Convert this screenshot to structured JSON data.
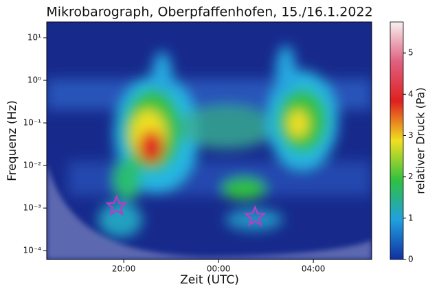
{
  "chart_data": {
    "type": "scatter",
    "title": "Mikrobarograph, Oberpfaffenhofen, 15./16.1.2022",
    "xlabel": "Zeit (UTC)",
    "ylabel": "Frequenz (Hz)",
    "ylog": true,
    "xlim": [
      16.75,
      30.46
    ],
    "ylim": [
      6.2e-05,
      23.5
    ],
    "xticks": [
      {
        "value": 20,
        "label": "20:00"
      },
      {
        "value": 24,
        "label": "00:00"
      },
      {
        "value": 28,
        "label": "04:00"
      }
    ],
    "yticks": [
      {
        "value": 0.0001,
        "label": "10⁻⁴"
      },
      {
        "value": 0.001,
        "label": "10⁻³"
      },
      {
        "value": 0.01,
        "label": "10⁻²"
      },
      {
        "value": 0.1,
        "label": "10⁻¹"
      },
      {
        "value": 1,
        "label": "10⁰"
      },
      {
        "value": 10,
        "label": "10¹"
      }
    ],
    "series": [
      {
        "color": "#b040c8",
        "x": [
          19.7,
          25.54
        ],
        "values": [
          0.0011,
          0.00062
        ]
      }
    ],
    "colorbar": {
      "label": "relativer Druck (Pa)",
      "lim": [
        0,
        5.75
      ],
      "ticks": [
        0,
        1,
        2,
        3,
        4,
        5
      ],
      "colors": [
        "#1030a0",
        "#20a0e0",
        "#30c040",
        "#f0e020",
        "#e02020",
        "#e06080",
        "#f8f0f0"
      ]
    }
  }
}
